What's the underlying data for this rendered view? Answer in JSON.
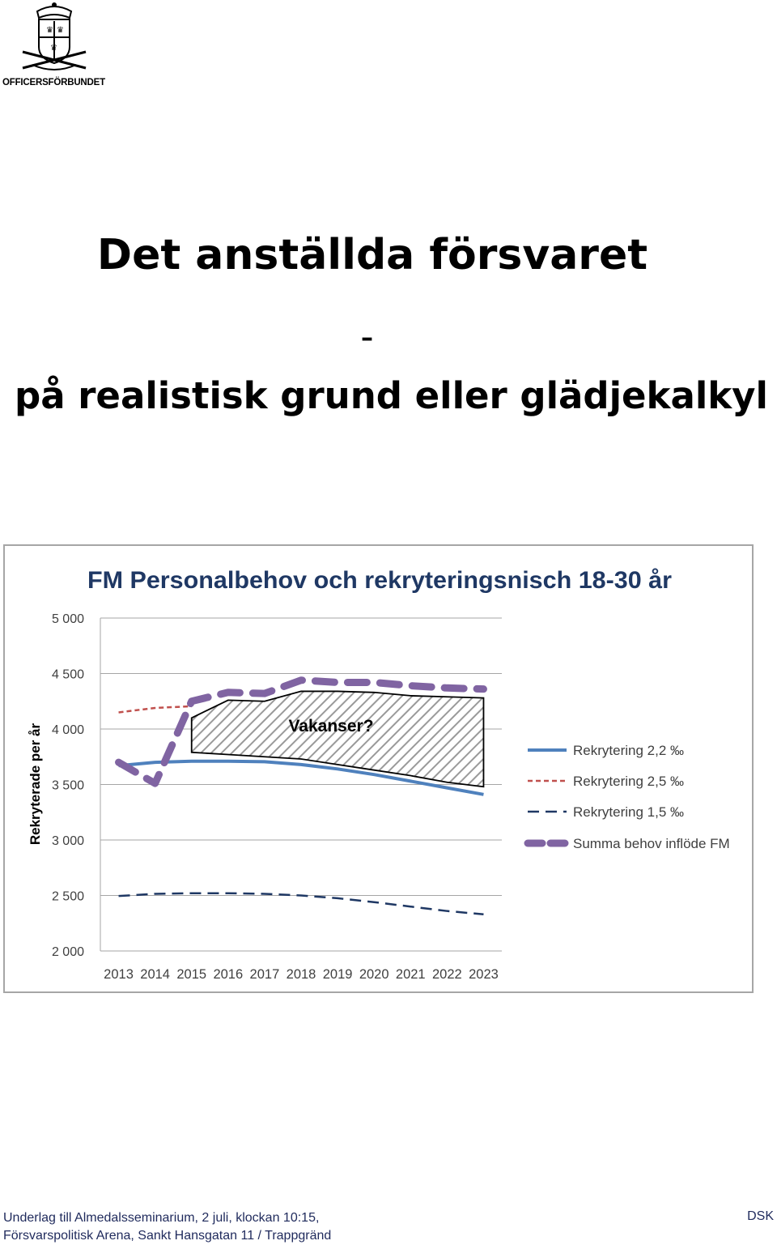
{
  "header": {
    "logo_text": "OFFICERSFÖRBUNDET"
  },
  "document": {
    "title": "Det anställda försvaret",
    "dash": "–",
    "subtitle": "på realistisk grund eller glädjekalkyl"
  },
  "chart_data": {
    "type": "line",
    "title": "FM Personalbehov och rekryteringsnisch 18-30 år",
    "ylabel": "Rekryterade per år",
    "xlabel": "",
    "ylim": [
      2000,
      5000
    ],
    "yticks": [
      2000,
      2500,
      3000,
      3500,
      4000,
      4500,
      5000
    ],
    "ytick_labels": [
      "2 000",
      "2 500",
      "3 000",
      "3 500",
      "4 000",
      "4 500",
      "5 000"
    ],
    "categories": [
      "2013",
      "2014",
      "2015",
      "2016",
      "2017",
      "2018",
      "2019",
      "2020",
      "2021",
      "2022",
      "2023"
    ],
    "grid": true,
    "legend_position": "right",
    "annotation": "Vakanser?",
    "series": [
      {
        "name": "Rekrytering 2,2 ‰",
        "color": "#4f81bd",
        "style": "solid",
        "values": [
          3670,
          3700,
          3710,
          3710,
          3705,
          3680,
          3640,
          3590,
          3530,
          3470,
          3410
        ]
      },
      {
        "name": "Rekrytering 2,5 ‰",
        "color": "#c0504d",
        "style": "dotted",
        "values": [
          4150,
          4190,
          4205,
          null,
          null,
          null,
          null,
          null,
          null,
          null,
          null
        ]
      },
      {
        "name": "Rekrytering 1,5 ‰",
        "color": "#1f3864",
        "style": "dash",
        "values": [
          2495,
          2515,
          2520,
          2520,
          2515,
          2500,
          2475,
          2440,
          2400,
          2360,
          2330
        ]
      },
      {
        "name": "Summa behov inflöde FM",
        "color": "#8064a2",
        "style": "thickdash",
        "values": [
          3700,
          3510,
          4250,
          4330,
          4320,
          4440,
          4420,
          4420,
          4390,
          4370,
          4360
        ]
      }
    ],
    "vacancy_band": {
      "upper": [
        null,
        null,
        4100,
        4260,
        4250,
        4340,
        4340,
        4330,
        4300,
        4290,
        4280
      ],
      "lower": [
        null,
        null,
        3790,
        3770,
        3750,
        3730,
        3680,
        3630,
        3580,
        3520,
        3480
      ]
    }
  },
  "footer": {
    "line1": "Underlag till Almedalsseminarium, 2 juli, klockan 10:15,",
    "line2": "Försvarspolitisk Arena, Sankt Hansgatan 11 / Trappgränd",
    "right": "DSK"
  }
}
